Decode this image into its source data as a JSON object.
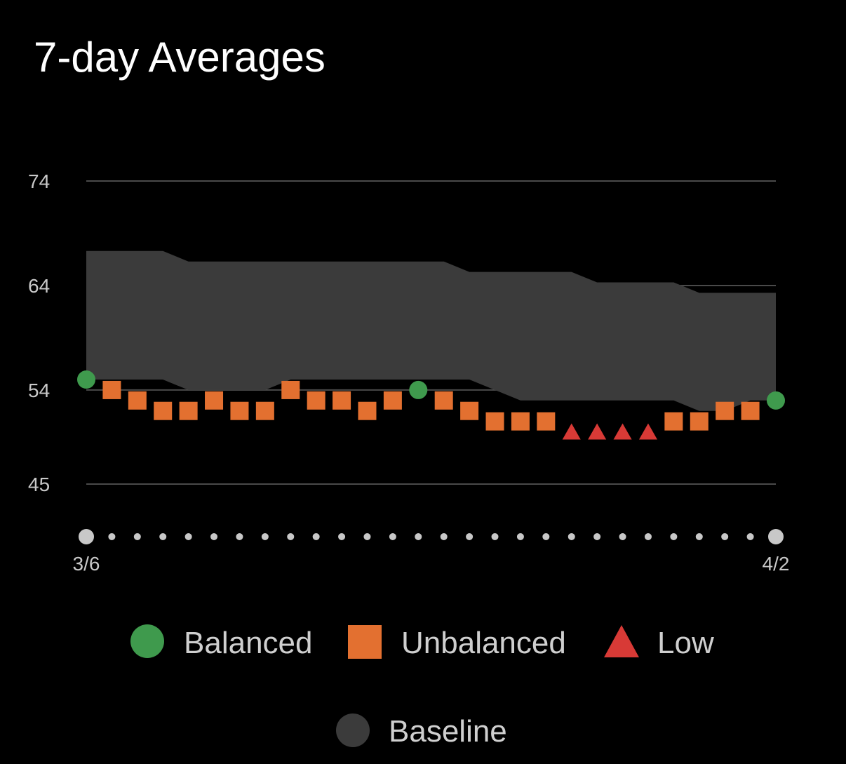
{
  "chart_data": {
    "type": "scatter",
    "title": "7-day Averages",
    "xlabel": "",
    "ylabel": "",
    "ylim": [
      45,
      74
    ],
    "y_ticks": [
      "74",
      "64",
      "54",
      "45"
    ],
    "x_tick_labels": {
      "start": "3/6",
      "end": "4/2"
    },
    "num_days": 28,
    "grid": true,
    "legend_position": "bottom",
    "baseline": {
      "name": "Baseline",
      "color": "#3b3b3b",
      "upper": [
        67.3,
        67.3,
        67.3,
        67.3,
        66.3,
        66.3,
        66.3,
        66.3,
        66.3,
        66.3,
        66.3,
        66.3,
        66.3,
        66.3,
        66.3,
        65.3,
        65.3,
        65.3,
        65.3,
        65.3,
        64.3,
        64.3,
        64.3,
        64.3,
        63.3,
        63.3,
        63.3,
        63.3
      ],
      "lower": [
        55.0,
        55.0,
        55.0,
        55.0,
        54.0,
        54.0,
        54.0,
        54.0,
        55.0,
        55.0,
        55.0,
        55.0,
        55.0,
        55.0,
        55.0,
        55.0,
        54.0,
        53.0,
        53.0,
        53.0,
        53.0,
        53.0,
        53.0,
        53.0,
        52.0,
        52.0,
        53.0,
        53.0
      ]
    },
    "series": [
      {
        "name": "Balanced",
        "color": "#3f9a4d",
        "marker": "circle"
      },
      {
        "name": "Unbalanced",
        "color": "#e37030",
        "marker": "square"
      },
      {
        "name": "Low",
        "color": "#d83a36",
        "marker": "triangle"
      }
    ],
    "points": [
      {
        "day": 1,
        "value": 55.0,
        "series": "Balanced"
      },
      {
        "day": 2,
        "value": 54.0,
        "series": "Unbalanced"
      },
      {
        "day": 3,
        "value": 53.0,
        "series": "Unbalanced"
      },
      {
        "day": 4,
        "value": 52.0,
        "series": "Unbalanced"
      },
      {
        "day": 5,
        "value": 52.0,
        "series": "Unbalanced"
      },
      {
        "day": 6,
        "value": 53.0,
        "series": "Unbalanced"
      },
      {
        "day": 7,
        "value": 52.0,
        "series": "Unbalanced"
      },
      {
        "day": 8,
        "value": 52.0,
        "series": "Unbalanced"
      },
      {
        "day": 9,
        "value": 54.0,
        "series": "Unbalanced"
      },
      {
        "day": 10,
        "value": 53.0,
        "series": "Unbalanced"
      },
      {
        "day": 11,
        "value": 53.0,
        "series": "Unbalanced"
      },
      {
        "day": 12,
        "value": 52.0,
        "series": "Unbalanced"
      },
      {
        "day": 13,
        "value": 53.0,
        "series": "Unbalanced"
      },
      {
        "day": 14,
        "value": 54.0,
        "series": "Balanced"
      },
      {
        "day": 15,
        "value": 53.0,
        "series": "Unbalanced"
      },
      {
        "day": 16,
        "value": 52.0,
        "series": "Unbalanced"
      },
      {
        "day": 17,
        "value": 51.0,
        "series": "Unbalanced"
      },
      {
        "day": 18,
        "value": 51.0,
        "series": "Unbalanced"
      },
      {
        "day": 19,
        "value": 51.0,
        "series": "Unbalanced"
      },
      {
        "day": 20,
        "value": 50.0,
        "series": "Low"
      },
      {
        "day": 21,
        "value": 50.0,
        "series": "Low"
      },
      {
        "day": 22,
        "value": 50.0,
        "series": "Low"
      },
      {
        "day": 23,
        "value": 50.0,
        "series": "Low"
      },
      {
        "day": 24,
        "value": 51.0,
        "series": "Unbalanced"
      },
      {
        "day": 25,
        "value": 51.0,
        "series": "Unbalanced"
      },
      {
        "day": 26,
        "value": 52.0,
        "series": "Unbalanced"
      },
      {
        "day": 27,
        "value": 52.0,
        "series": "Unbalanced"
      },
      {
        "day": 28,
        "value": 53.0,
        "series": "Balanced"
      }
    ]
  },
  "legend": {
    "items": [
      {
        "label": "Balanced",
        "icon": "circle-icon",
        "color": "#3f9a4d"
      },
      {
        "label": "Unbalanced",
        "icon": "square-icon",
        "color": "#e37030"
      },
      {
        "label": "Low",
        "icon": "triangle-icon",
        "color": "#d83a36"
      },
      {
        "label": "Baseline",
        "icon": "circle-icon",
        "color": "#3b3b3b"
      }
    ]
  }
}
